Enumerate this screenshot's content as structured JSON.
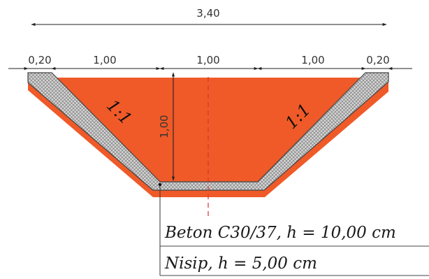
{
  "dimensions": {
    "overall_width": "3,40",
    "berm_left": "0,20",
    "slope_left": "1,00",
    "bottom": "1,00",
    "slope_right": "1,00",
    "berm_right": "0,20",
    "depth": "1,00"
  },
  "slopes": {
    "left": "1:1",
    "right": "1:1"
  },
  "layers": [
    {
      "label": "Beton C30/37, h = 10,00 cm",
      "color": "#d0d0d0"
    },
    {
      "label": "Nisip, h = 5,00 cm",
      "color": "#ef5a28"
    }
  ],
  "colors": {
    "concrete": "#cfcfcf",
    "sand": "#ef5a28",
    "axis": "#e03030",
    "dimension": "#222222"
  }
}
